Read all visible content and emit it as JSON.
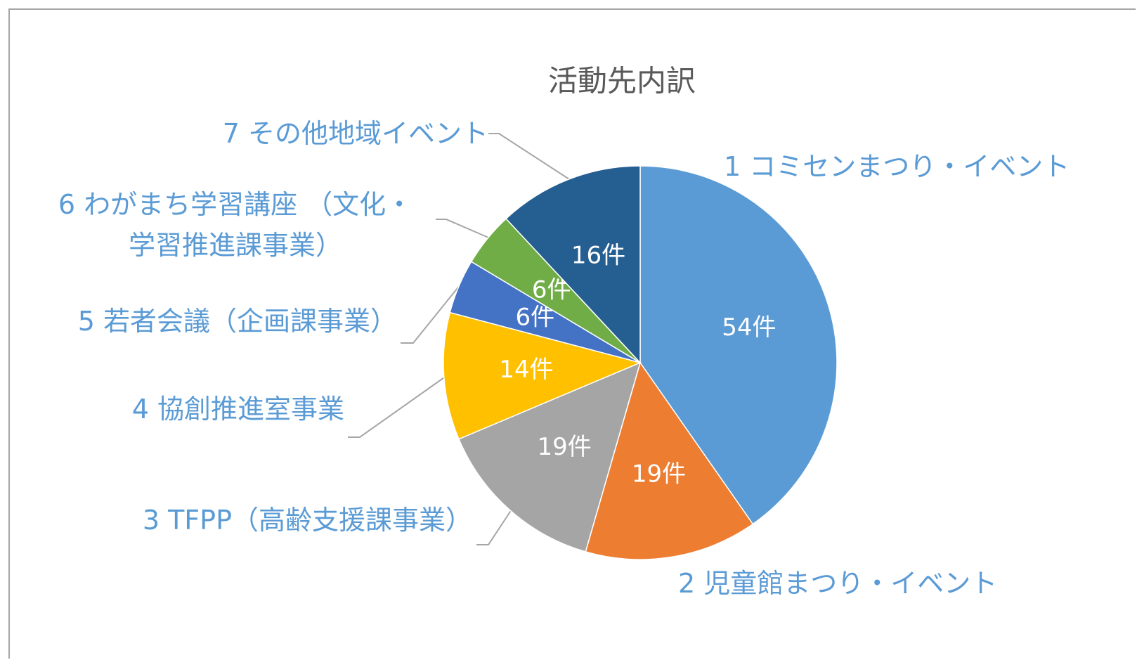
{
  "chart_data": {
    "type": "pie",
    "title": "活動先内訳",
    "categories": [
      "1 コミセンまつり・イベント",
      "2 児童館まつり・イベント",
      "3 TFPP（高齢支援課事業）",
      "4 協創推進室事業",
      "5 若者会議（企画課事業）",
      "6 わがまち学習講座 （文化・\n学習推進課事業）",
      "7 その他地域イベント"
    ],
    "values": [
      54,
      19,
      19,
      14,
      6,
      6,
      16
    ],
    "value_labels": [
      "54件",
      "19件",
      "19件",
      "14件",
      "6件",
      "6件",
      "16件"
    ],
    "colors": [
      "#5b9bd5",
      "#ed7d31",
      "#a5a5a5",
      "#ffc000",
      "#4472c4",
      "#70ad47",
      "#255e91"
    ]
  }
}
